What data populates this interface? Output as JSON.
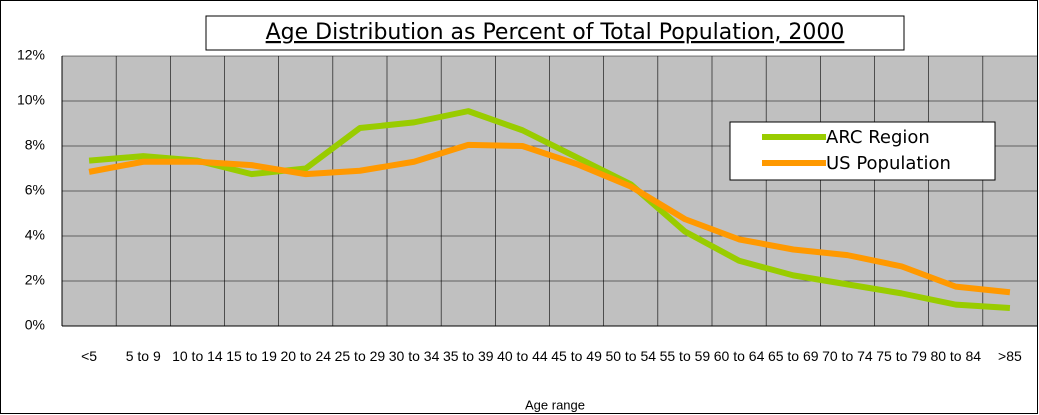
{
  "chart_data": {
    "type": "line",
    "title": "Age Distribution as Percent of Total Population, 2000",
    "x_label": "Age range",
    "categories": [
      "<5",
      "5 to 9",
      "10 to 14",
      "15 to 19",
      "20 to 24",
      "25 to 29",
      "30 to 34",
      "35 to 39",
      "40 to 44",
      "45 to 49",
      "50 to 54",
      "55 to 59",
      "60 to 64",
      "65 to 69",
      "70 to 74",
      "75 to 79",
      "80 to 84",
      ">85"
    ],
    "series": [
      {
        "name": "ARC Region",
        "color": "#99cc00",
        "values": [
          7.35,
          7.55,
          7.35,
          6.75,
          7.0,
          8.8,
          9.05,
          9.55,
          8.7,
          7.5,
          6.3,
          4.2,
          2.9,
          2.25,
          1.85,
          1.45,
          0.95,
          0.8
        ]
      },
      {
        "name": "US Population",
        "color": "#ff9900",
        "values": [
          6.85,
          7.3,
          7.3,
          7.15,
          6.75,
          6.9,
          7.3,
          8.05,
          8.0,
          7.2,
          6.2,
          4.75,
          3.85,
          3.4,
          3.15,
          2.65,
          1.75,
          1.5
        ]
      }
    ],
    "ylim": [
      0,
      12
    ],
    "yticks": [
      {
        "value": 0,
        "label": "0%"
      },
      {
        "value": 2,
        "label": "2%"
      },
      {
        "value": 4,
        "label": "4%"
      },
      {
        "value": 6,
        "label": "6%"
      },
      {
        "value": 8,
        "label": "8%"
      },
      {
        "value": 10,
        "label": "10%"
      },
      {
        "value": 12,
        "label": "12%"
      }
    ],
    "grid": true,
    "legend": "upper right"
  }
}
